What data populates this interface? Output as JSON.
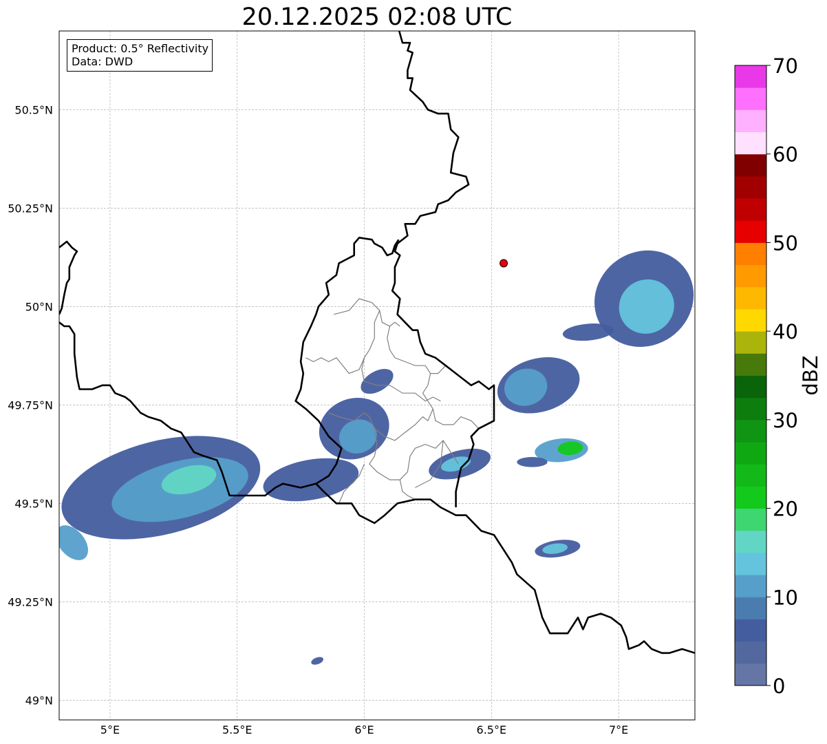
{
  "title": "20.12.2025 02:08 UTC",
  "info": {
    "product": "Product: 0.5° Reflectivity",
    "data": "Data: DWD"
  },
  "map": {
    "lon_range": [
      4.8,
      7.3
    ],
    "lat_range": [
      48.95,
      50.7
    ],
    "grid": true,
    "lon_ticks": [
      {
        "value": 5.0,
        "label": "5°E"
      },
      {
        "value": 5.5,
        "label": "5.5°E"
      },
      {
        "value": 6.0,
        "label": "6°E"
      },
      {
        "value": 6.5,
        "label": "6.5°E"
      },
      {
        "value": 7.0,
        "label": "7°E"
      }
    ],
    "lat_ticks": [
      {
        "value": 49.0,
        "label": "49°N"
      },
      {
        "value": 49.25,
        "label": "49.25°N"
      },
      {
        "value": 49.5,
        "label": "49.5°N"
      },
      {
        "value": 49.75,
        "label": "49.75°N"
      },
      {
        "value": 50.0,
        "label": "50°N"
      },
      {
        "value": 50.25,
        "label": "50.25°N"
      },
      {
        "value": 50.5,
        "label": "50.5°N"
      }
    ],
    "marker": {
      "lon": 6.548,
      "lat": 50.11,
      "color": "#e8000b"
    },
    "national_borders": [
      [
        [
          6.135,
          50.705
        ],
        [
          6.15,
          50.67
        ],
        [
          6.18,
          50.67
        ],
        [
          6.17,
          50.65
        ],
        [
          6.19,
          50.645
        ],
        [
          6.17,
          50.6
        ],
        [
          6.17,
          50.58
        ],
        [
          6.19,
          50.58
        ],
        [
          6.18,
          50.55
        ],
        [
          6.23,
          50.52
        ],
        [
          6.25,
          50.5
        ],
        [
          6.29,
          50.49
        ],
        [
          6.33,
          50.49
        ],
        [
          6.34,
          50.45
        ],
        [
          6.37,
          50.43
        ],
        [
          6.35,
          50.39
        ],
        [
          6.34,
          50.34
        ],
        [
          6.4,
          50.33
        ],
        [
          6.41,
          50.31
        ],
        [
          6.36,
          50.29
        ],
        [
          6.33,
          50.27
        ],
        [
          6.29,
          50.26
        ],
        [
          6.28,
          50.24
        ],
        [
          6.22,
          50.23
        ],
        [
          6.2,
          50.21
        ],
        [
          6.16,
          50.21
        ],
        [
          6.17,
          50.18
        ],
        [
          6.13,
          50.16
        ],
        [
          6.12,
          50.14
        ],
        [
          6.14,
          50.13
        ],
        [
          6.12,
          50.1
        ],
        [
          6.12,
          50.06
        ],
        [
          6.11,
          50.04
        ],
        [
          6.14,
          50.02
        ],
        [
          6.13,
          49.98
        ],
        [
          6.16,
          49.96
        ],
        [
          6.19,
          49.94
        ],
        [
          6.21,
          49.94
        ],
        [
          6.22,
          49.91
        ],
        [
          6.24,
          49.88
        ],
        [
          6.28,
          49.87
        ],
        [
          6.32,
          49.85
        ],
        [
          6.34,
          49.84
        ],
        [
          6.38,
          49.82
        ],
        [
          6.42,
          49.8
        ],
        [
          6.45,
          49.81
        ],
        [
          6.49,
          49.79
        ],
        [
          6.51,
          49.8
        ],
        [
          6.51,
          49.73
        ],
        [
          6.51,
          49.71
        ],
        [
          6.45,
          49.69
        ],
        [
          6.42,
          49.67
        ],
        [
          6.43,
          49.65
        ],
        [
          6.41,
          49.61
        ],
        [
          6.38,
          49.59
        ],
        [
          6.37,
          49.56
        ],
        [
          6.36,
          49.53
        ],
        [
          6.36,
          49.49
        ]
      ],
      [
        [
          4.8,
          50.15
        ],
        [
          4.83,
          50.165
        ],
        [
          4.85,
          50.15
        ],
        [
          4.87,
          50.14
        ],
        [
          4.86,
          50.13
        ],
        [
          4.84,
          50.1
        ],
        [
          4.84,
          50.07
        ],
        [
          4.83,
          50.06
        ],
        [
          4.82,
          50.03
        ],
        [
          4.81,
          49.995
        ],
        [
          4.8,
          49.98
        ]
      ],
      [
        [
          4.8,
          49.96
        ],
        [
          4.82,
          49.95
        ],
        [
          4.84,
          49.95
        ],
        [
          4.86,
          49.93
        ],
        [
          4.86,
          49.88
        ],
        [
          4.87,
          49.82
        ],
        [
          4.88,
          49.79
        ],
        [
          4.93,
          49.79
        ],
        [
          4.97,
          49.8
        ],
        [
          5.0,
          49.8
        ],
        [
          5.02,
          49.78
        ],
        [
          5.06,
          49.77
        ],
        [
          5.08,
          49.76
        ],
        [
          5.12,
          49.73
        ],
        [
          5.15,
          49.72
        ],
        [
          5.2,
          49.71
        ],
        [
          5.24,
          49.69
        ],
        [
          5.28,
          49.68
        ],
        [
          5.31,
          49.65
        ],
        [
          5.33,
          49.63
        ],
        [
          5.37,
          49.62
        ],
        [
          5.42,
          49.61
        ],
        [
          5.44,
          49.58
        ],
        [
          5.47,
          49.52
        ],
        [
          5.53,
          49.52
        ],
        [
          5.61,
          49.52
        ],
        [
          5.65,
          49.54
        ],
        [
          5.68,
          49.55
        ],
        [
          5.75,
          49.54
        ],
        [
          5.81,
          49.55
        ],
        [
          5.84,
          49.53
        ],
        [
          5.89,
          49.5
        ],
        [
          5.95,
          49.5
        ],
        [
          5.98,
          49.47
        ],
        [
          6.04,
          49.45
        ],
        [
          6.08,
          49.47
        ],
        [
          6.13,
          49.5
        ],
        [
          6.2,
          49.51
        ],
        [
          6.26,
          49.51
        ],
        [
          6.3,
          49.49
        ],
        [
          6.36,
          49.47
        ],
        [
          6.4,
          49.47
        ],
        [
          6.46,
          49.43
        ],
        [
          6.51,
          49.42
        ],
        [
          6.54,
          49.39
        ],
        [
          6.58,
          49.35
        ],
        [
          6.6,
          49.32
        ],
        [
          6.67,
          49.28
        ],
        [
          6.7,
          49.21
        ],
        [
          6.73,
          49.17
        ],
        [
          6.8,
          49.17
        ],
        [
          6.84,
          49.21
        ],
        [
          6.86,
          49.18
        ],
        [
          6.88,
          49.21
        ],
        [
          6.93,
          49.22
        ],
        [
          6.97,
          49.21
        ],
        [
          7.01,
          49.19
        ],
        [
          7.03,
          49.16
        ],
        [
          7.04,
          49.13
        ],
        [
          7.08,
          49.14
        ],
        [
          7.1,
          49.15
        ],
        [
          7.13,
          49.13
        ],
        [
          7.17,
          49.12
        ],
        [
          7.2,
          49.12
        ],
        [
          7.25,
          49.13
        ],
        [
          7.3,
          49.12
        ]
      ],
      [
        [
          6.135,
          50.17
        ],
        [
          6.12,
          50.155
        ],
        [
          6.11,
          50.135
        ],
        [
          6.09,
          50.13
        ],
        [
          6.07,
          50.15
        ],
        [
          6.04,
          50.16
        ],
        [
          6.03,
          50.17
        ],
        [
          5.98,
          50.175
        ],
        [
          5.96,
          50.16
        ],
        [
          5.96,
          50.13
        ],
        [
          5.9,
          50.11
        ],
        [
          5.89,
          50.08
        ],
        [
          5.85,
          50.06
        ],
        [
          5.86,
          50.03
        ],
        [
          5.82,
          50.0
        ],
        [
          5.81,
          49.98
        ],
        [
          5.79,
          49.95
        ],
        [
          5.76,
          49.91
        ],
        [
          5.75,
          49.86
        ],
        [
          5.76,
          49.83
        ],
        [
          5.75,
          49.79
        ],
        [
          5.73,
          49.76
        ],
        [
          5.77,
          49.74
        ],
        [
          5.82,
          49.71
        ],
        [
          5.86,
          49.67
        ],
        [
          5.91,
          49.64
        ],
        [
          5.89,
          49.6
        ],
        [
          5.86,
          49.57
        ],
        [
          5.81,
          49.55
        ]
      ]
    ],
    "admin_borders": [
      [
        [
          5.88,
          49.98
        ],
        [
          5.94,
          49.99
        ],
        [
          5.98,
          50.02
        ],
        [
          6.03,
          50.01
        ],
        [
          6.06,
          49.99
        ],
        [
          6.07,
          49.96
        ],
        [
          6.1,
          49.95
        ],
        [
          6.12,
          49.96
        ],
        [
          6.14,
          49.95
        ]
      ],
      [
        [
          6.06,
          49.99
        ],
        [
          6.04,
          49.96
        ],
        [
          6.04,
          49.92
        ],
        [
          6.02,
          49.89
        ],
        [
          6.0,
          49.87
        ],
        [
          5.98,
          49.84
        ],
        [
          5.94,
          49.83
        ],
        [
          5.89,
          49.87
        ],
        [
          5.86,
          49.86
        ],
        [
          5.83,
          49.87
        ],
        [
          5.8,
          49.86
        ],
        [
          5.77,
          49.87
        ]
      ],
      [
        [
          6.1,
          49.95
        ],
        [
          6.09,
          49.92
        ],
        [
          6.1,
          49.89
        ],
        [
          6.12,
          49.87
        ],
        [
          6.16,
          49.86
        ],
        [
          6.2,
          49.85
        ],
        [
          6.24,
          49.85
        ],
        [
          6.26,
          49.83
        ],
        [
          6.29,
          49.83
        ],
        [
          6.32,
          49.85
        ]
      ],
      [
        [
          6.0,
          49.87
        ],
        [
          5.99,
          49.84
        ],
        [
          6.0,
          49.81
        ],
        [
          6.05,
          49.8
        ],
        [
          6.1,
          49.8
        ],
        [
          6.15,
          49.78
        ],
        [
          6.2,
          49.78
        ],
        [
          6.24,
          49.76
        ],
        [
          6.27,
          49.77
        ],
        [
          6.3,
          49.76
        ]
      ],
      [
        [
          6.26,
          49.83
        ],
        [
          6.25,
          49.8
        ],
        [
          6.23,
          49.78
        ],
        [
          6.25,
          49.76
        ],
        [
          6.27,
          49.74
        ],
        [
          6.28,
          49.71
        ],
        [
          6.31,
          49.7
        ],
        [
          6.35,
          49.7
        ],
        [
          6.38,
          49.72
        ],
        [
          6.42,
          49.71
        ],
        [
          6.45,
          49.69
        ]
      ],
      [
        [
          5.86,
          49.73
        ],
        [
          5.9,
          49.72
        ],
        [
          5.96,
          49.71
        ],
        [
          6.0,
          49.73
        ],
        [
          6.02,
          49.72
        ],
        [
          6.04,
          49.69
        ],
        [
          6.08,
          49.67
        ],
        [
          6.12,
          49.66
        ],
        [
          6.16,
          49.68
        ],
        [
          6.2,
          49.7
        ],
        [
          6.23,
          49.72
        ],
        [
          6.25,
          49.71
        ],
        [
          6.27,
          49.74
        ]
      ],
      [
        [
          6.04,
          49.69
        ],
        [
          6.05,
          49.65
        ],
        [
          6.04,
          49.62
        ],
        [
          6.02,
          49.6
        ],
        [
          6.05,
          49.58
        ],
        [
          6.1,
          49.56
        ],
        [
          6.14,
          49.56
        ],
        [
          6.17,
          49.58
        ],
        [
          6.18,
          49.62
        ],
        [
          6.2,
          49.64
        ],
        [
          6.24,
          49.65
        ],
        [
          6.28,
          49.64
        ],
        [
          6.31,
          49.66
        ],
        [
          6.33,
          49.64
        ],
        [
          6.35,
          49.62
        ],
        [
          6.37,
          49.6
        ]
      ],
      [
        [
          6.14,
          49.56
        ],
        [
          6.15,
          49.53
        ],
        [
          6.17,
          49.52
        ],
        [
          6.2,
          49.51
        ]
      ],
      [
        [
          6.0,
          49.6
        ],
        [
          5.98,
          49.57
        ],
        [
          5.95,
          49.55
        ],
        [
          5.92,
          49.53
        ],
        [
          5.9,
          49.5
        ]
      ],
      [
        [
          6.31,
          49.66
        ],
        [
          6.3,
          49.6
        ],
        [
          6.26,
          49.56
        ],
        [
          6.2,
          49.54
        ]
      ]
    ],
    "radar_cells": [
      {
        "lon": [
          4.8,
          5.6
        ],
        "lat": [
          49.4,
          49.68
        ],
        "angle": -14,
        "dbz": 6
      },
      {
        "lon": [
          5.0,
          5.55
        ],
        "lat": [
          49.45,
          49.62
        ],
        "angle": -14,
        "dbz": 11
      },
      {
        "lon": [
          5.2,
          5.42
        ],
        "lat": [
          49.52,
          49.6
        ],
        "angle": -14,
        "dbz": 15
      },
      {
        "lon": [
          4.8,
          4.9
        ],
        "lat": [
          49.34,
          49.46
        ],
        "angle": -40,
        "dbz": 12
      },
      {
        "lon": [
          5.6,
          5.98
        ],
        "lat": [
          49.5,
          49.62
        ],
        "angle": -10,
        "dbz": 6
      },
      {
        "lon": [
          5.82,
          6.1
        ],
        "lat": [
          49.6,
          49.78
        ],
        "angle": -20,
        "dbz": 7
      },
      {
        "lon": [
          5.9,
          6.05
        ],
        "lat": [
          49.62,
          49.72
        ],
        "angle": -20,
        "dbz": 12
      },
      {
        "lon": [
          5.98,
          6.12
        ],
        "lat": [
          49.78,
          49.84
        ],
        "angle": -30,
        "dbz": 6
      },
      {
        "lon": [
          6.25,
          6.5
        ],
        "lat": [
          49.56,
          49.64
        ],
        "angle": -15,
        "dbz": 7
      },
      {
        "lon": [
          6.3,
          6.42
        ],
        "lat": [
          49.58,
          49.62
        ],
        "angle": -15,
        "dbz": 13
      },
      {
        "lon": [
          6.52,
          6.85
        ],
        "lat": [
          49.72,
          49.88
        ],
        "angle": -15,
        "dbz": 6
      },
      {
        "lon": [
          6.55,
          6.72
        ],
        "lat": [
          49.74,
          49.85
        ],
        "angle": -15,
        "dbz": 12
      },
      {
        "lon": [
          6.67,
          6.88
        ],
        "lat": [
          49.6,
          49.67
        ],
        "angle": -5,
        "dbz": 12
      },
      {
        "lon": [
          6.76,
          6.86
        ],
        "lat": [
          49.62,
          49.66
        ],
        "angle": -5,
        "dbz": 22
      },
      {
        "lon": [
          6.6,
          6.72
        ],
        "lat": [
          49.59,
          49.62
        ],
        "angle": 0,
        "dbz": 6
      },
      {
        "lon": [
          6.67,
          6.85
        ],
        "lat": [
          49.36,
          49.41
        ],
        "angle": -8,
        "dbz": 7
      },
      {
        "lon": [
          6.7,
          6.8
        ],
        "lat": [
          49.37,
          49.4
        ],
        "angle": -8,
        "dbz": 14
      },
      {
        "lon": [
          6.9,
          7.3
        ],
        "lat": [
          49.88,
          50.16
        ],
        "angle": -35,
        "dbz": 7
      },
      {
        "lon": [
          7.0,
          7.22
        ],
        "lat": [
          49.92,
          50.08
        ],
        "angle": -35,
        "dbz": 13
      },
      {
        "lon": [
          6.78,
          6.98
        ],
        "lat": [
          49.91,
          49.96
        ],
        "angle": -5,
        "dbz": 6
      },
      {
        "lon": [
          5.79,
          5.84
        ],
        "lat": [
          49.09,
          49.11
        ],
        "angle": -20,
        "dbz": 7
      }
    ]
  },
  "colorbar": {
    "label": "dBZ",
    "min": 0,
    "max": 70,
    "tick_values": [
      0,
      10,
      20,
      30,
      40,
      50,
      60,
      70
    ],
    "tick_labels": [
      "0",
      "10",
      "20",
      "30",
      "40",
      "50",
      "60",
      "70"
    ],
    "colors": [
      "#6475a6",
      "#52689f",
      "#445d9f",
      "#4b7cb0",
      "#569fcb",
      "#64c4dd",
      "#62d6c4",
      "#3dd670",
      "#13c91c",
      "#12b919",
      "#0fa812",
      "#0f9413",
      "#0d7e0e",
      "#0a640a",
      "#477a0a",
      "#abb40a",
      "#ffd800",
      "#ffb800",
      "#ff9b00",
      "#ff7f00",
      "#e60000",
      "#c00000",
      "#a00000",
      "#800000",
      "#ffe0ff",
      "#ffb0ff",
      "#ff70ff",
      "#e838e8"
    ]
  }
}
